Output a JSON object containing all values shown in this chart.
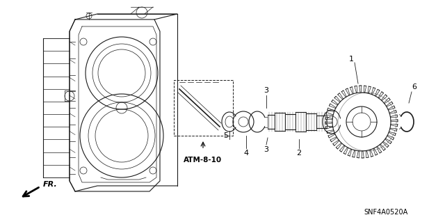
{
  "background_color": "#ffffff",
  "line_color": "#1a1a1a",
  "text_color": "#000000",
  "atm_label": "ATM-8-10",
  "diagram_code": "SNF4A0520A",
  "figsize": [
    6.4,
    3.19
  ],
  "dpi": 100
}
